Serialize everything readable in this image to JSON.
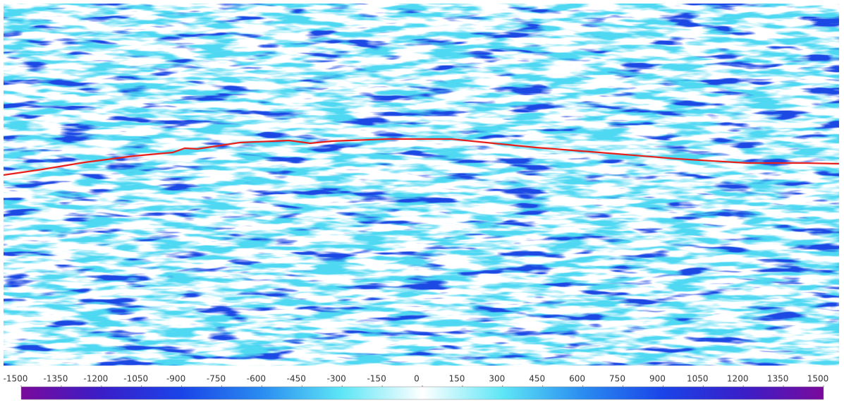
{
  "chart_data": {
    "type": "heatmap",
    "colorbar": {
      "lim": [
        -1500,
        1500
      ],
      "ticks": [
        -1500,
        -1350,
        -1200,
        -1050,
        -900,
        -750,
        -600,
        -450,
        -300,
        -150,
        0,
        150,
        300,
        450,
        600,
        750,
        900,
        1050,
        1200,
        1350,
        1500
      ],
      "colors": [
        "#7a0a9c",
        "#3a1ec8",
        "#1a44e8",
        "#2a8cf0",
        "#5ee6f6",
        "#ffffff",
        "#5ee6f6",
        "#2a8cf0",
        "#1a44e8",
        "#3a1ec8",
        "#7a0a9c"
      ]
    }
  }
}
